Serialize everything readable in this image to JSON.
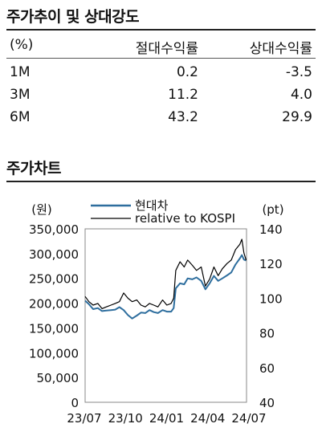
{
  "table": {
    "title": "주가추이 및 상대강도",
    "headers": [
      "(%)",
      "절대수익률",
      "상대수익률"
    ],
    "rows": [
      [
        "1M",
        "0.2",
        "-3.5"
      ],
      [
        "3M",
        "11.2",
        "4.0"
      ],
      [
        "6M",
        "43.2",
        "29.9"
      ]
    ]
  },
  "chart_section": {
    "title": "주가차트"
  },
  "chart_data": {
    "type": "line",
    "title": "",
    "left_axis": {
      "unit_label": "(원)",
      "ylim": [
        0,
        350000
      ],
      "ticks": [
        "350,000",
        "300,000",
        "250,000",
        "200,000",
        "150,000",
        "100,000",
        "50,000",
        "0"
      ]
    },
    "right_axis": {
      "unit_label": "(pt)",
      "ylim": [
        40,
        140
      ],
      "ticks": [
        "140",
        "120",
        "100",
        "80",
        "60",
        "40"
      ]
    },
    "x_ticks": [
      "23/07",
      "23/10",
      "24/01",
      "24/04",
      "24/07"
    ],
    "legend": {
      "placement": "top-left",
      "entries": [
        "현대차",
        "relative to KOSPI"
      ]
    },
    "series": [
      {
        "name": "현대차",
        "axis": "left",
        "color": "#2e6e9e",
        "points": [
          [
            "2023-07-01",
            205000
          ],
          [
            "2023-07-10",
            198000
          ],
          [
            "2023-07-20",
            188000
          ],
          [
            "2023-07-31",
            190000
          ],
          [
            "2023-08-10",
            184000
          ],
          [
            "2023-08-20",
            185000
          ],
          [
            "2023-08-31",
            186000
          ],
          [
            "2023-09-10",
            187000
          ],
          [
            "2023-09-20",
            192000
          ],
          [
            "2023-09-30",
            186000
          ],
          [
            "2023-10-10",
            176000
          ],
          [
            "2023-10-20",
            169000
          ],
          [
            "2023-10-31",
            175000
          ],
          [
            "2023-11-10",
            181000
          ],
          [
            "2023-11-20",
            180000
          ],
          [
            "2023-11-30",
            186000
          ],
          [
            "2023-12-10",
            182000
          ],
          [
            "2023-12-20",
            180000
          ],
          [
            "2023-12-31",
            186000
          ],
          [
            "2024-01-10",
            183000
          ],
          [
            "2024-01-20",
            183000
          ],
          [
            "2024-01-26",
            190000
          ],
          [
            "2024-01-31",
            230000
          ],
          [
            "2024-02-10",
            240000
          ],
          [
            "2024-02-20",
            238000
          ],
          [
            "2024-02-28",
            250000
          ],
          [
            "2024-03-10",
            248000
          ],
          [
            "2024-03-20",
            252000
          ],
          [
            "2024-03-31",
            245000
          ],
          [
            "2024-04-10",
            228000
          ],
          [
            "2024-04-20",
            240000
          ],
          [
            "2024-04-30",
            255000
          ],
          [
            "2024-05-10",
            245000
          ],
          [
            "2024-05-20",
            250000
          ],
          [
            "2024-05-31",
            256000
          ],
          [
            "2024-06-10",
            262000
          ],
          [
            "2024-06-20",
            278000
          ],
          [
            "2024-06-30",
            290000
          ],
          [
            "2024-07-05",
            297000
          ],
          [
            "2024-07-10",
            288000
          ],
          [
            "2024-07-15",
            286000
          ]
        ]
      },
      {
        "name": "relative to KOSPI",
        "axis": "right",
        "color": "#000000",
        "points": [
          [
            "2023-07-01",
            101
          ],
          [
            "2023-07-10",
            98
          ],
          [
            "2023-07-20",
            96
          ],
          [
            "2023-07-31",
            97
          ],
          [
            "2023-08-10",
            94
          ],
          [
            "2023-08-20",
            95
          ],
          [
            "2023-08-31",
            96
          ],
          [
            "2023-09-10",
            97
          ],
          [
            "2023-09-20",
            98
          ],
          [
            "2023-09-30",
            103
          ],
          [
            "2023-10-10",
            100
          ],
          [
            "2023-10-20",
            98
          ],
          [
            "2023-10-31",
            99
          ],
          [
            "2023-11-10",
            96
          ],
          [
            "2023-11-20",
            95
          ],
          [
            "2023-11-30",
            97
          ],
          [
            "2023-12-10",
            96
          ],
          [
            "2023-12-20",
            95
          ],
          [
            "2023-12-31",
            99
          ],
          [
            "2024-01-10",
            96
          ],
          [
            "2024-01-20",
            97
          ],
          [
            "2024-01-26",
            100
          ],
          [
            "2024-01-31",
            116
          ],
          [
            "2024-02-10",
            121
          ],
          [
            "2024-02-20",
            118
          ],
          [
            "2024-02-28",
            122
          ],
          [
            "2024-03-10",
            119
          ],
          [
            "2024-03-20",
            116
          ],
          [
            "2024-03-31",
            118
          ],
          [
            "2024-04-10",
            107
          ],
          [
            "2024-04-20",
            111
          ],
          [
            "2024-04-30",
            118
          ],
          [
            "2024-05-10",
            113
          ],
          [
            "2024-05-20",
            117
          ],
          [
            "2024-05-31",
            120
          ],
          [
            "2024-06-10",
            122
          ],
          [
            "2024-06-20",
            128
          ],
          [
            "2024-06-30",
            131
          ],
          [
            "2024-07-05",
            134
          ],
          [
            "2024-07-10",
            126
          ],
          [
            "2024-07-15",
            122
          ]
        ]
      }
    ]
  }
}
